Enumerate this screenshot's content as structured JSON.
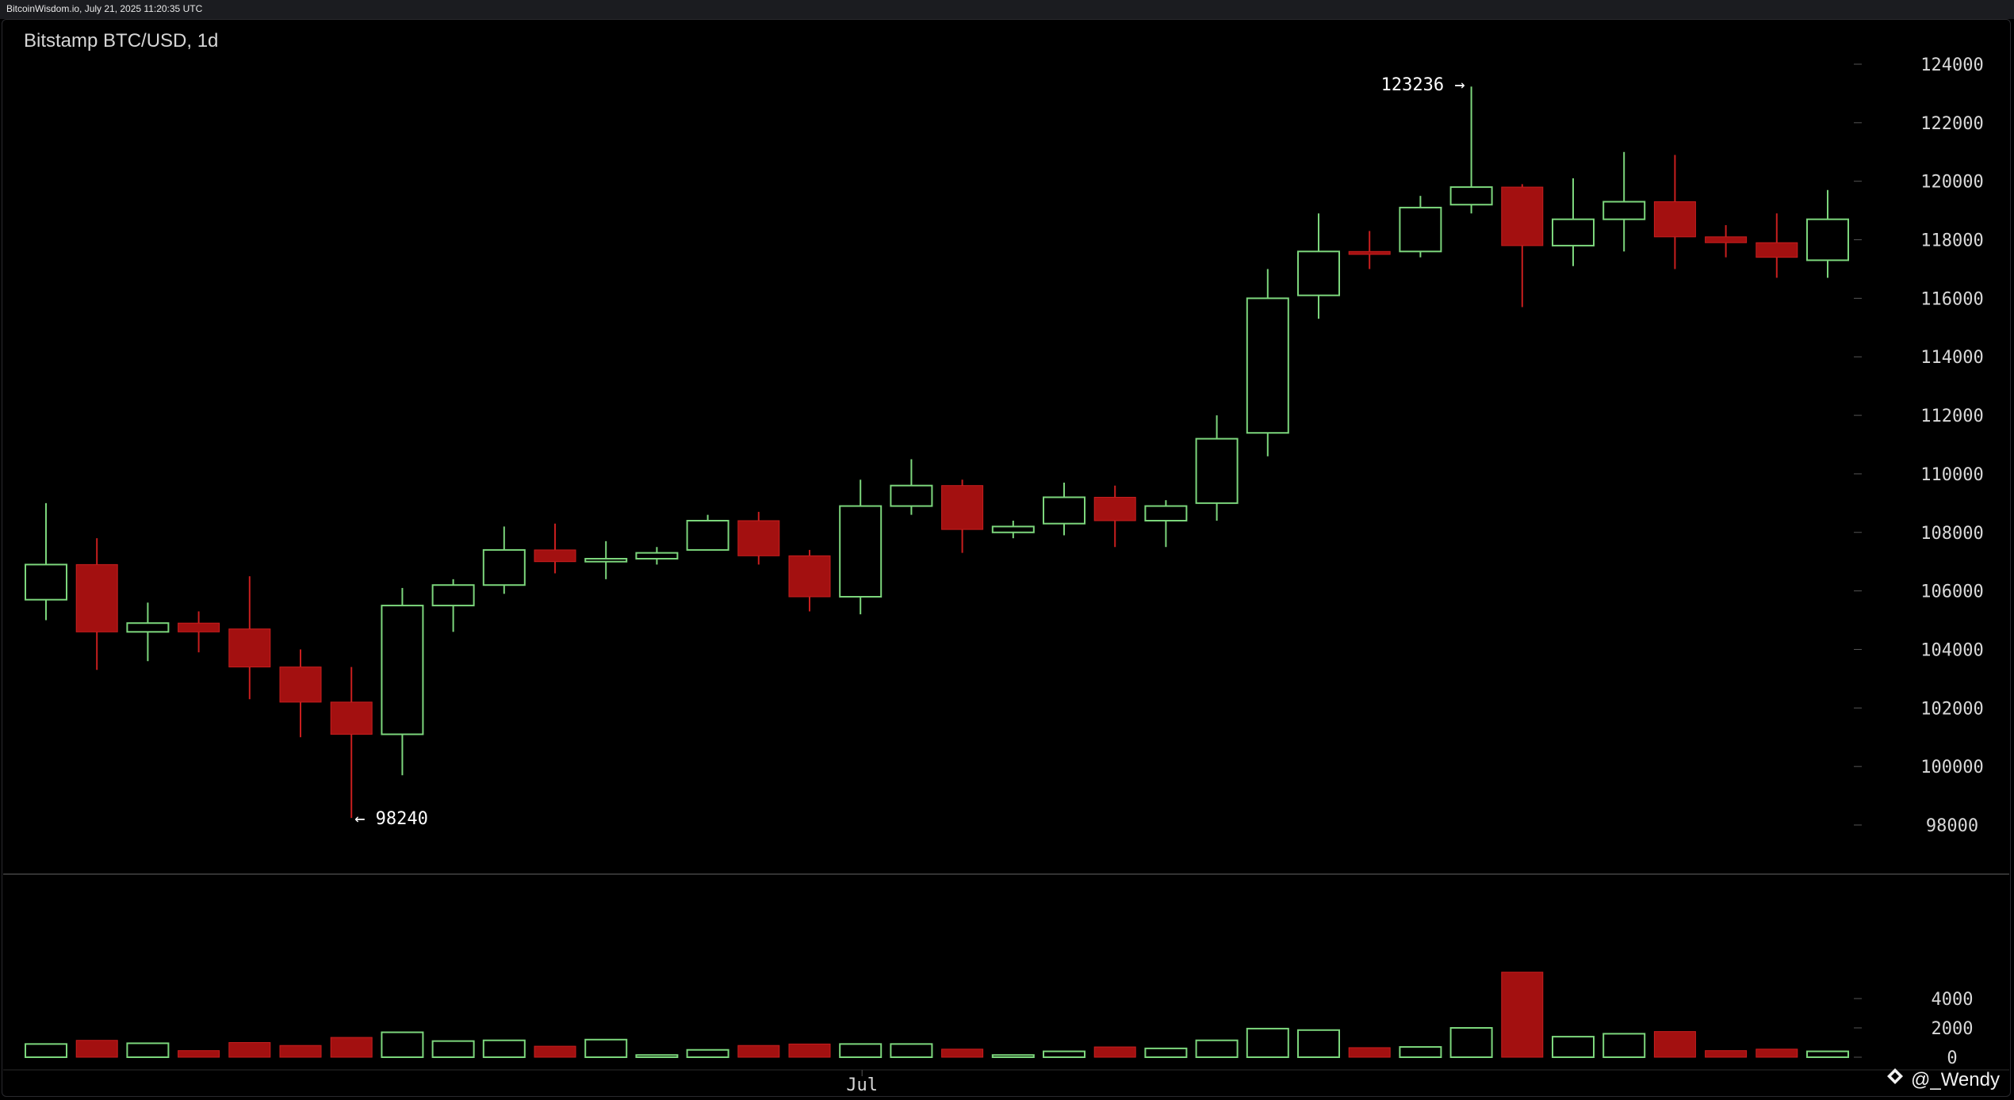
{
  "header": {
    "source_line": "BitcoinWisdom.io, July 21, 2025 11:20:35 UTC"
  },
  "watermark": {
    "text": "@_Wendy",
    "icon": "diamond-logo-icon"
  },
  "colors": {
    "up": "#7cd67c",
    "down": "#a31010",
    "down_edge": "#c81e1e",
    "grid_tick": "#555555",
    "separator": "#444444"
  },
  "chart_data": {
    "type": "candlestick",
    "title": "Bitstamp BTC/USD, 1d",
    "ylim": [
      97000,
      125000
    ],
    "yticks": [
      98000,
      100000,
      102000,
      104000,
      106000,
      108000,
      110000,
      112000,
      114000,
      116000,
      118000,
      120000,
      122000,
      124000
    ],
    "volume_ylim": [
      0,
      6000
    ],
    "volume_yticks": [
      0,
      2000,
      4000
    ],
    "xticks": [
      {
        "label": "Jul",
        "index": 16
      }
    ],
    "annotations": {
      "high": {
        "label": "123236 →",
        "value": 123236,
        "index": 28
      },
      "low": {
        "label": "← 98240",
        "value": 98240,
        "index": 6
      }
    },
    "candles": [
      {
        "open": 105700,
        "high": 109000,
        "low": 105000,
        "close": 106900,
        "volume": 900
      },
      {
        "open": 106900,
        "high": 107800,
        "low": 103300,
        "close": 104600,
        "volume": 1150
      },
      {
        "open": 104600,
        "high": 105600,
        "low": 103600,
        "close": 104900,
        "volume": 950
      },
      {
        "open": 104900,
        "high": 105300,
        "low": 103900,
        "close": 104600,
        "volume": 450
      },
      {
        "open": 104700,
        "high": 106500,
        "low": 102300,
        "close": 103400,
        "volume": 1000
      },
      {
        "open": 103400,
        "high": 104000,
        "low": 101000,
        "close": 102200,
        "volume": 800
      },
      {
        "open": 102200,
        "high": 103400,
        "low": 98240,
        "close": 101100,
        "volume": 1350
      },
      {
        "open": 101100,
        "high": 106100,
        "low": 99700,
        "close": 105500,
        "volume": 1700
      },
      {
        "open": 105500,
        "high": 106400,
        "low": 104600,
        "close": 106200,
        "volume": 1100
      },
      {
        "open": 106200,
        "high": 108200,
        "low": 105900,
        "close": 107400,
        "volume": 1150
      },
      {
        "open": 107400,
        "high": 108300,
        "low": 106600,
        "close": 107000,
        "volume": 750
      },
      {
        "open": 107000,
        "high": 107700,
        "low": 106400,
        "close": 107100,
        "volume": 1200
      },
      {
        "open": 107100,
        "high": 107500,
        "low": 106900,
        "close": 107300,
        "volume": 150
      },
      {
        "open": 107400,
        "high": 108600,
        "low": 107400,
        "close": 108400,
        "volume": 500
      },
      {
        "open": 108400,
        "high": 108700,
        "low": 106900,
        "close": 107200,
        "volume": 800
      },
      {
        "open": 107200,
        "high": 107400,
        "low": 105300,
        "close": 105800,
        "volume": 900
      },
      {
        "open": 105800,
        "high": 109800,
        "low": 105200,
        "close": 108900,
        "volume": 900
      },
      {
        "open": 108900,
        "high": 110500,
        "low": 108600,
        "close": 109600,
        "volume": 900
      },
      {
        "open": 109600,
        "high": 109800,
        "low": 107300,
        "close": 108100,
        "volume": 550
      },
      {
        "open": 108000,
        "high": 108400,
        "low": 107800,
        "close": 108200,
        "volume": 150
      },
      {
        "open": 108300,
        "high": 109700,
        "low": 107900,
        "close": 109200,
        "volume": 400
      },
      {
        "open": 109200,
        "high": 109600,
        "low": 107500,
        "close": 108400,
        "volume": 700
      },
      {
        "open": 108400,
        "high": 109100,
        "low": 107500,
        "close": 108900,
        "volume": 600
      },
      {
        "open": 109000,
        "high": 112000,
        "low": 108400,
        "close": 111200,
        "volume": 1150
      },
      {
        "open": 111400,
        "high": 117000,
        "low": 110600,
        "close": 116000,
        "volume": 1950
      },
      {
        "open": 116100,
        "high": 118900,
        "low": 115300,
        "close": 117600,
        "volume": 1850
      },
      {
        "open": 117600,
        "high": 118300,
        "low": 117000,
        "close": 117500,
        "volume": 650
      },
      {
        "open": 117600,
        "high": 119500,
        "low": 117400,
        "close": 119100,
        "volume": 700
      },
      {
        "open": 119200,
        "high": 123236,
        "low": 118900,
        "close": 119800,
        "volume": 2000
      },
      {
        "open": 119800,
        "high": 119900,
        "low": 115700,
        "close": 117800,
        "volume": 5800
      },
      {
        "open": 117800,
        "high": 120100,
        "low": 117100,
        "close": 118700,
        "volume": 1400
      },
      {
        "open": 118700,
        "high": 121000,
        "low": 117600,
        "close": 119300,
        "volume": 1600
      },
      {
        "open": 119300,
        "high": 120900,
        "low": 117000,
        "close": 118100,
        "volume": 1750
      },
      {
        "open": 118100,
        "high": 118500,
        "low": 117400,
        "close": 117900,
        "volume": 450
      },
      {
        "open": 117900,
        "high": 118900,
        "low": 116700,
        "close": 117400,
        "volume": 550
      },
      {
        "open": 117300,
        "high": 119700,
        "low": 116700,
        "close": 118700,
        "volume": 400
      }
    ]
  }
}
